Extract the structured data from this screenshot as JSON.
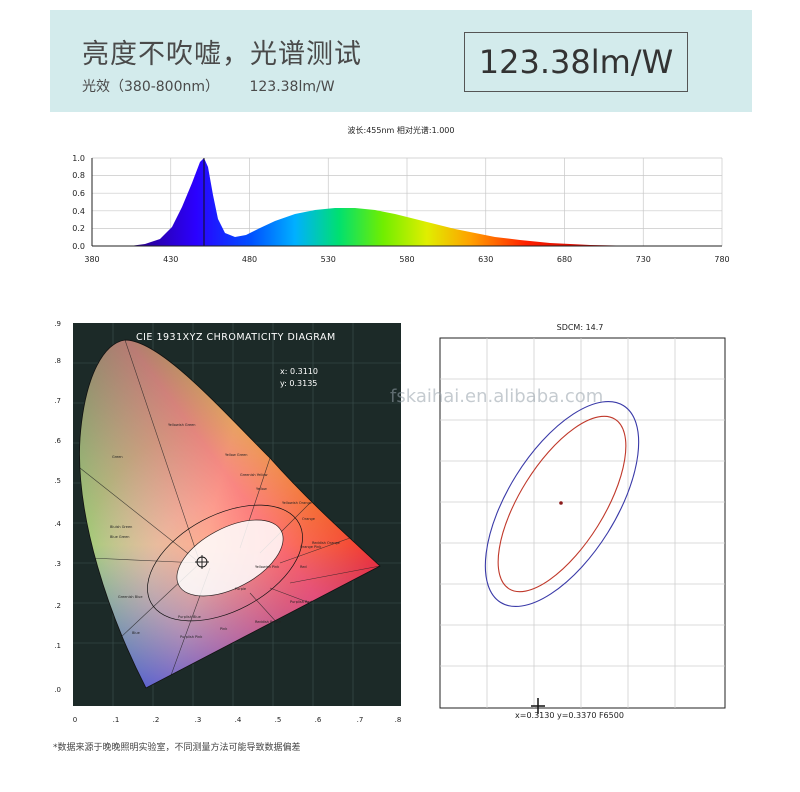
{
  "banner": {
    "title": "亮度不吹嘘，光谱测试",
    "efficacy_label": "光效（380-800nm）",
    "efficacy_value": "123.38lm/W",
    "big_value": "123.38lm/W",
    "bg_color": "#d3ebec"
  },
  "spectrum": {
    "caption": "波长:455nm  相对光谱:1.000",
    "y_ticks": [
      "0.0",
      "0.2",
      "0.4",
      "0.6",
      "0.8",
      "1.0"
    ],
    "x_ticks": [
      "380",
      "430",
      "480",
      "530",
      "580",
      "630",
      "680",
      "730",
      "780"
    ]
  },
  "cie": {
    "title": "CIE 1931XYZ CHROMATICITY DIAGRAM",
    "x_readout": "x: 0.3110",
    "y_readout": "y: 0.3135",
    "y_ticks": [
      ".9",
      ".8",
      ".7",
      ".6",
      ".5",
      ".4",
      ".3",
      ".2",
      ".1",
      ".0"
    ],
    "x_ticks": [
      "0",
      ".1",
      ".2",
      ".3",
      ".4",
      ".5",
      ".6",
      ".7",
      ".8"
    ],
    "regions": [
      "Green",
      "Yellowish Green",
      "Yellow Green",
      "Greenish Yellow",
      "Yellow",
      "Yellowish Orange",
      "Orange",
      "Reddish Orange",
      "Red",
      "Purplish Red",
      "Purple",
      "Reddish Purple",
      "Bluish Green",
      "Blue Green",
      "Greenish Blue",
      "Blue",
      "Purplish Blue",
      "Pink",
      "Purplish Pink",
      "Orange Pink",
      "Yellowish Pink"
    ]
  },
  "sdcm": {
    "title": "SDCM:  14.7",
    "readout": "x=0.3130  y=0.3370  F6500",
    "outer_color": "#3a3aa8",
    "inner_color": "#c0392b",
    "point_color": "#8b1a1a"
  },
  "watermark": "fskaihai.en.alibaba.com",
  "footnote": "*数据来源于晚晚照明实验室，不同测量方法可能导致数据偏差"
}
